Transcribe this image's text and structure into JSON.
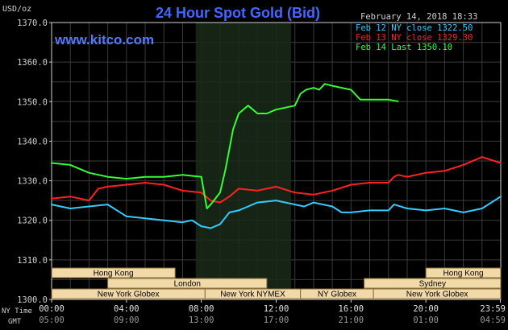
{
  "header": {
    "title": "24 Hour Spot Gold (Bid)",
    "unit": "USD/oz",
    "datetime": "February 14, 2018 18:33",
    "watermark": "www.kitco.com"
  },
  "colors": {
    "background": "#000000",
    "grid": "#3a3a3a",
    "title": "#4466ff",
    "watermark": "#5577ff",
    "text": "#d0d0d0",
    "feb12": "#33ccff",
    "feb13": "#ff2222",
    "feb14": "#33ff33",
    "session_fill": "#f2d9a8",
    "session_stroke": "#8a6e3a",
    "highlight": "#1a2a1a"
  },
  "axis_row_labels": {
    "ny": "NY Time",
    "gmt": "GMT"
  },
  "sessions": [
    {
      "label": "Hong Kong",
      "row": 0,
      "start": 0.0,
      "end": 6.6
    },
    {
      "label": "Hong Kong",
      "row": 0,
      "start": 20.0,
      "end": 24.0
    },
    {
      "label": "London",
      "row": 1,
      "start": 3.0,
      "end": 11.5
    },
    {
      "label": "Sydney",
      "row": 1,
      "start": 16.7,
      "end": 24.0
    },
    {
      "label": "New York Globex",
      "row": 2,
      "start": 0.0,
      "end": 8.2
    },
    {
      "label": "New York NYMEX",
      "row": 2,
      "start": 8.2,
      "end": 13.3
    },
    {
      "label": "NY Globex",
      "row": 2,
      "start": 13.3,
      "end": 17.2
    },
    {
      "label": "New York Globex",
      "row": 2,
      "start": 17.2,
      "end": 24.0
    }
  ],
  "chart_data": {
    "type": "line",
    "title": "24 Hour Spot Gold (Bid)",
    "ylabel": "USD/oz",
    "xlim": [
      0,
      24
    ],
    "ylim": [
      1300,
      1370
    ],
    "yticks": [
      1300,
      1310,
      1320,
      1330,
      1340,
      1350,
      1360,
      1370
    ],
    "ytick_labels": [
      "1300.0",
      "1310.0",
      "1320.0",
      "1330.0",
      "1340.0",
      "1350.0",
      "1360.0",
      "1370.0"
    ],
    "xticks": [
      0,
      4,
      8,
      12,
      16,
      20,
      23.98
    ],
    "xtick_labels_ny": [
      "00:00",
      "04:00",
      "08:00",
      "12:00",
      "16:00",
      "20:00",
      "23:59"
    ],
    "xtick_labels_gmt": [
      "05:00",
      "09:00",
      "13:00",
      "17:00",
      "21:00",
      "01:00",
      "04:59"
    ],
    "grid": true,
    "highlight_range": [
      7.7,
      12.8
    ],
    "legend": {
      "placement": "top-right",
      "entries": [
        {
          "label": "Feb 12 NY close 1322.50",
          "color": "#33ccff"
        },
        {
          "label": "Feb 13 NY close 1329.30",
          "color": "#ff2222"
        },
        {
          "label": "Feb 14 Last 1350.10",
          "color": "#33ff33"
        }
      ]
    },
    "series": [
      {
        "name": "Feb 12",
        "color": "#33ccff",
        "x": [
          0,
          1,
          2,
          3,
          4,
          5,
          6,
          7,
          7.5,
          8,
          8.5,
          9,
          9.5,
          10,
          10.5,
          11,
          12,
          13,
          13.5,
          14,
          15,
          15.5,
          16,
          17,
          18,
          18.3,
          19,
          20,
          21,
          22,
          23,
          24
        ],
        "y": [
          1324,
          1323,
          1323.5,
          1324,
          1321,
          1320.5,
          1320,
          1319.5,
          1320,
          1318.5,
          1318,
          1319,
          1322,
          1322.5,
          1323.5,
          1324.5,
          1325,
          1324,
          1323.5,
          1324.5,
          1323.5,
          1322,
          1322,
          1322.5,
          1322.5,
          1324,
          1323,
          1322.5,
          1323,
          1322,
          1323,
          1326
        ]
      },
      {
        "name": "Feb 13",
        "color": "#ff2222",
        "x": [
          0,
          1,
          2,
          2.5,
          3,
          4,
          5,
          6,
          7,
          8,
          8.5,
          9,
          9.5,
          10,
          11,
          12,
          13,
          14,
          15,
          16,
          17,
          18,
          18.3,
          18.5,
          19,
          20,
          21,
          22,
          23,
          24
        ],
        "y": [
          1325.5,
          1326,
          1325,
          1328,
          1328.5,
          1329,
          1329.5,
          1329,
          1327.5,
          1327,
          1325,
          1324.5,
          1326,
          1328,
          1327.5,
          1328.5,
          1327,
          1326.5,
          1327.5,
          1329,
          1329.5,
          1329.5,
          1331,
          1331.5,
          1331,
          1332,
          1332.5,
          1334,
          1336,
          1334.5
        ]
      },
      {
        "name": "Feb 14",
        "color": "#33ff33",
        "x": [
          0,
          1,
          2,
          3,
          4,
          5,
          6,
          7,
          8,
          8.3,
          8.5,
          9,
          9.3,
          9.7,
          10,
          10.5,
          11,
          11.5,
          12,
          12.5,
          13,
          13.3,
          13.6,
          14,
          14.3,
          14.6,
          15,
          15.5,
          16,
          16.5,
          17,
          17.5,
          18,
          18.5
        ],
        "y": [
          1334.5,
          1334,
          1332,
          1331,
          1330.5,
          1331,
          1331,
          1331.5,
          1331,
          1323,
          1324,
          1327,
          1333,
          1343,
          1347,
          1349,
          1347,
          1347,
          1348,
          1348.5,
          1349,
          1352,
          1353,
          1353.5,
          1353,
          1354.5,
          1354,
          1353.5,
          1353,
          1350.5,
          1350.5,
          1350.5,
          1350.5,
          1350.1
        ]
      }
    ]
  }
}
